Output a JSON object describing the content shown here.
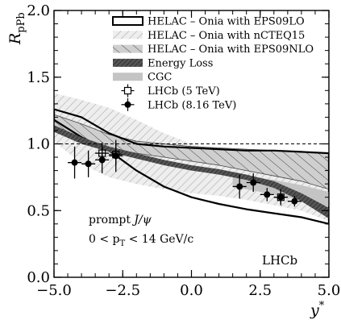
{
  "chart_data": {
    "type": "line",
    "title": "",
    "ylabel": "R_pPb",
    "xlabel": "y*",
    "xlim": [
      -5.0,
      5.0
    ],
    "ylim": [
      0.0,
      2.0
    ],
    "x_ticks": [
      -5.0,
      -2.5,
      0.0,
      2.5,
      5.0
    ],
    "y_ticks": [
      0.0,
      0.5,
      1.0,
      1.5,
      2.0
    ],
    "x_tick_labels": [
      "−5.0",
      "−2.5",
      "0.0",
      "2.5",
      "5.0"
    ],
    "y_tick_labels": [
      "0.0",
      "0.5",
      "1.0",
      "1.5",
      "2.0"
    ],
    "reference_line_y": 1.0,
    "legend": [
      {
        "label": "HELAC – Onia with EPS09LO",
        "style": "outline-band"
      },
      {
        "label": "HELAC – Onia with nCTEQ15",
        "style": "light-hatched-band"
      },
      {
        "label": "HELAC – Onia with EPS09NLO",
        "style": "hatched-band"
      },
      {
        "label": "Energy Loss",
        "style": "dark-hatched-band"
      },
      {
        "label": "CGC",
        "style": "light-band"
      },
      {
        "label": "LHCb (5 TeV)",
        "style": "open-cross-marker"
      },
      {
        "label": "LHCb (8.16 TeV)",
        "style": "filled-circle-marker"
      }
    ],
    "bands": [
      {
        "name": "HELAC – Onia with nCTEQ15",
        "x": [
          -5.0,
          -4.0,
          -3.0,
          -2.0,
          -1.0,
          0.0,
          1.0,
          2.0,
          3.0,
          4.0,
          5.0
        ],
        "upper": [
          1.38,
          1.33,
          1.27,
          1.18,
          1.08,
          1.0,
          0.95,
          0.9,
          0.87,
          0.84,
          0.8
        ],
        "lower": [
          1.02,
          0.85,
          0.75,
          0.7,
          0.66,
          0.63,
          0.61,
          0.58,
          0.54,
          0.5,
          0.42
        ]
      },
      {
        "name": "HELAC – Onia with EPS09NLO",
        "x": [
          -5.0,
          -4.0,
          -3.0,
          -2.0,
          -1.0,
          0.0,
          1.0,
          2.0,
          3.0,
          4.0,
          5.0
        ],
        "upper": [
          1.22,
          1.15,
          1.07,
          1.02,
          1.0,
          0.98,
          0.97,
          0.96,
          0.95,
          0.94,
          0.93
        ],
        "lower": [
          1.12,
          1.04,
          0.97,
          0.93,
          0.9,
          0.87,
          0.84,
          0.8,
          0.76,
          0.72,
          0.66
        ]
      },
      {
        "name": "HELAC – Onia with EPS09LO",
        "x": [
          -5.0,
          -4.0,
          -3.0,
          -2.0,
          -1.0,
          0.0,
          1.0,
          2.0,
          3.0,
          4.0,
          5.0
        ],
        "upper": [
          1.26,
          1.2,
          1.08,
          1.0,
          0.98,
          0.97,
          0.96,
          0.95,
          0.95,
          0.94,
          0.93
        ],
        "lower": [
          1.18,
          1.05,
          0.95,
          0.8,
          0.68,
          0.6,
          0.55,
          0.51,
          0.48,
          0.45,
          0.4
        ]
      },
      {
        "name": "CGC",
        "x": [
          1.5,
          2.0,
          3.0,
          4.0,
          5.0
        ],
        "upper": [
          0.78,
          0.76,
          0.73,
          0.69,
          0.64
        ],
        "lower": [
          0.68,
          0.66,
          0.62,
          0.58,
          0.53
        ]
      },
      {
        "name": "Energy Loss",
        "x": [
          -5.0,
          -4.0,
          -3.0,
          -2.0,
          -1.0,
          0.0,
          1.0,
          2.0,
          3.0,
          4.0,
          5.0
        ],
        "upper": [
          1.14,
          1.05,
          0.98,
          0.93,
          0.88,
          0.84,
          0.81,
          0.77,
          0.72,
          0.63,
          0.52
        ],
        "lower": [
          1.09,
          1.0,
          0.94,
          0.89,
          0.84,
          0.8,
          0.77,
          0.73,
          0.67,
          0.57,
          0.44
        ]
      }
    ],
    "series": [
      {
        "name": "LHCb (8.16 TeV)",
        "x": [
          -4.25,
          -3.75,
          -3.25,
          -2.75,
          1.75,
          2.25,
          2.75,
          3.25,
          3.75
        ],
        "y": [
          0.86,
          0.85,
          0.88,
          0.91,
          0.68,
          0.71,
          0.62,
          0.6,
          0.57
        ],
        "yerr": [
          0.12,
          0.1,
          0.1,
          0.12,
          0.09,
          0.07,
          0.05,
          0.05,
          0.04
        ],
        "xerr": 0.25
      },
      {
        "name": "LHCb (5 TeV)",
        "x": [
          -3.25,
          -2.75,
          3.25
        ],
        "y": [
          0.93,
          0.92,
          0.6
        ],
        "yerr": [
          0.08,
          0.08,
          0.06
        ],
        "xerr": 0.25
      }
    ],
    "annotations": [
      {
        "text": "prompt J/ψ"
      },
      {
        "text": "0 < p_T < 14 GeV/c"
      },
      {
        "text": "LHCb"
      }
    ],
    "legend_position": "top-right",
    "grid": false
  },
  "text": {
    "ylabel_main": "R",
    "ylabel_sub": "pPb",
    "xlabel_main": "y",
    "xlabel_sup": "*",
    "ann_prompt": "prompt ",
    "ann_jpsi": "J/ψ",
    "ann_range_pre": "0 < p",
    "ann_range_sub": "T",
    "ann_range_post": " < 14 GeV/c",
    "ann_lhcb": "LHCb"
  }
}
